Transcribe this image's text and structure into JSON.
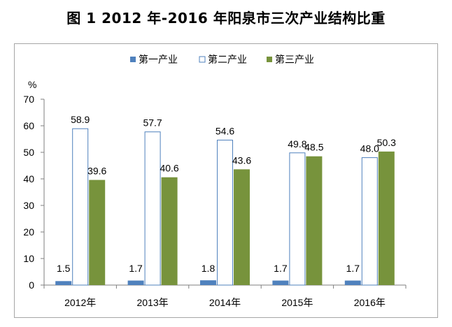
{
  "figure": {
    "title": "图 1    2012 年-2016 年阳泉市三次产业结构比重"
  },
  "chart_data": {
    "type": "bar",
    "title": "",
    "ylabel": "%",
    "xlabel": "",
    "ylim": [
      0,
      70
    ],
    "yticks": [
      "0",
      "10",
      "20",
      "30",
      "40",
      "50",
      "60",
      "70"
    ],
    "categories": [
      "2012年",
      "2013年",
      "2014年",
      "2015年",
      "2016年"
    ],
    "series": [
      {
        "name": "第一产业",
        "values": [
          1.5,
          1.7,
          1.8,
          1.7,
          1.7
        ],
        "color": "#4f81bd",
        "style": "filled"
      },
      {
        "name": "第二产业",
        "values": [
          58.9,
          57.7,
          54.6,
          49.8,
          48.0
        ],
        "color": "#4f81bd",
        "style": "outline"
      },
      {
        "name": "第三产业",
        "values": [
          39.6,
          40.6,
          43.6,
          48.5,
          50.3
        ],
        "color": "#77933c",
        "style": "filled"
      }
    ],
    "data_labels": [
      [
        "1.5",
        "1.7",
        "1.8",
        "1.7",
        "1.7"
      ],
      [
        "58.9",
        "57.7",
        "54.6",
        "49.8",
        "48.0"
      ],
      [
        "39.6",
        "40.6",
        "43.6",
        "48.5",
        "50.3"
      ]
    ],
    "legend": "top",
    "grid": false
  }
}
